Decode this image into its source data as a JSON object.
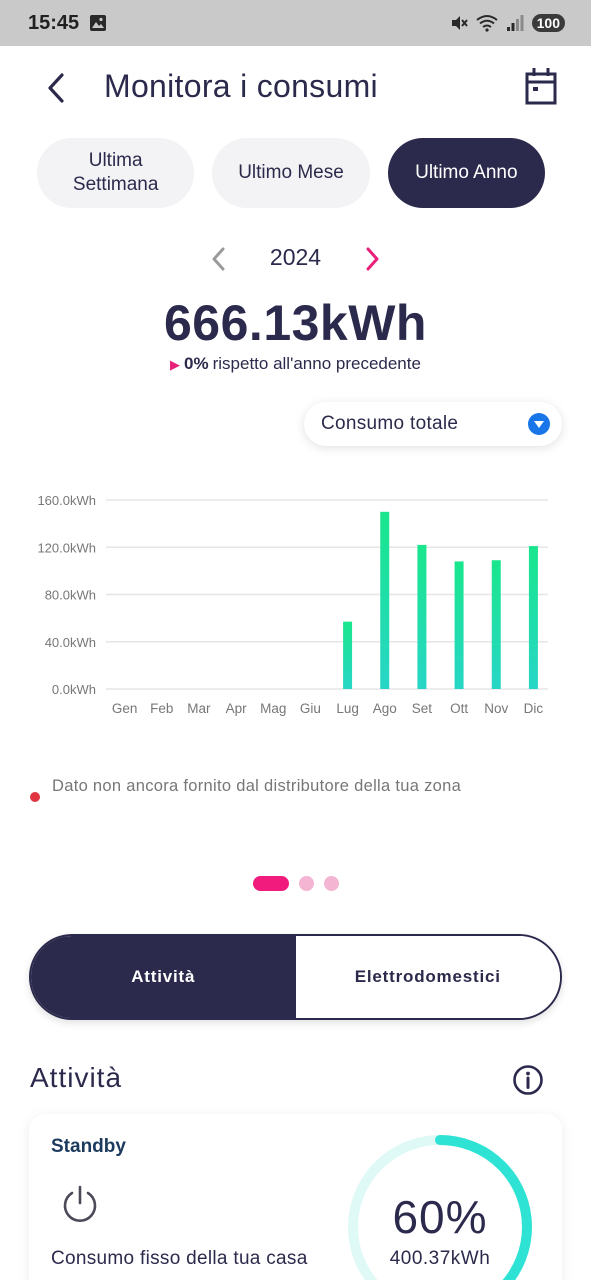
{
  "status_bar": {
    "time": "15:45",
    "battery": "100"
  },
  "header": {
    "title": "Monitora i consumi"
  },
  "period_tabs": [
    {
      "label": "Ultima Settimana",
      "active": false
    },
    {
      "label": "Ultimo Mese",
      "active": false
    },
    {
      "label": "Ultimo Anno",
      "active": true
    }
  ],
  "year_nav": {
    "year": "2024"
  },
  "summary": {
    "total": "666.13kWh",
    "delta_pct": "0%",
    "delta_text": "rispetto all'anno precedente"
  },
  "dropdown": {
    "selected": "Consumo totale"
  },
  "chart_data": {
    "type": "bar",
    "categories": [
      "Gen",
      "Feb",
      "Mar",
      "Apr",
      "Mag",
      "Giu",
      "Lug",
      "Ago",
      "Set",
      "Ott",
      "Nov",
      "Dic"
    ],
    "values": [
      0,
      0,
      0,
      0,
      0,
      0,
      57,
      150,
      122,
      108,
      109,
      121
    ],
    "ylim": [
      0,
      160
    ],
    "yticks": [
      "0.0kWh",
      "40.0kWh",
      "80.0kWh",
      "120.0kWh",
      "160.0kWh"
    ],
    "ytick_values": [
      0,
      40,
      80,
      120,
      160
    ],
    "grid": true,
    "colors": {
      "bar_top": "#19e68c",
      "bar_bottom": "#27d6c6",
      "grid": "#e6e6e6"
    }
  },
  "note": {
    "text": "Dato non ancora fornito dal distributore della tua zona"
  },
  "segment": {
    "left": "Attività",
    "right": "Elettrodomestici"
  },
  "section": {
    "title": "Attività"
  },
  "card": {
    "title": "Standby",
    "description": "Consumo fisso della tua casa",
    "percent": "60%",
    "value": "400.37kWh",
    "progress": 0.6
  },
  "colors": {
    "primary": "#2b2a4c",
    "accent": "#f01b7d",
    "ring": "#2fe3d4",
    "ring_track": "#dff9f6",
    "dropdown_icon": "#1976e8"
  }
}
